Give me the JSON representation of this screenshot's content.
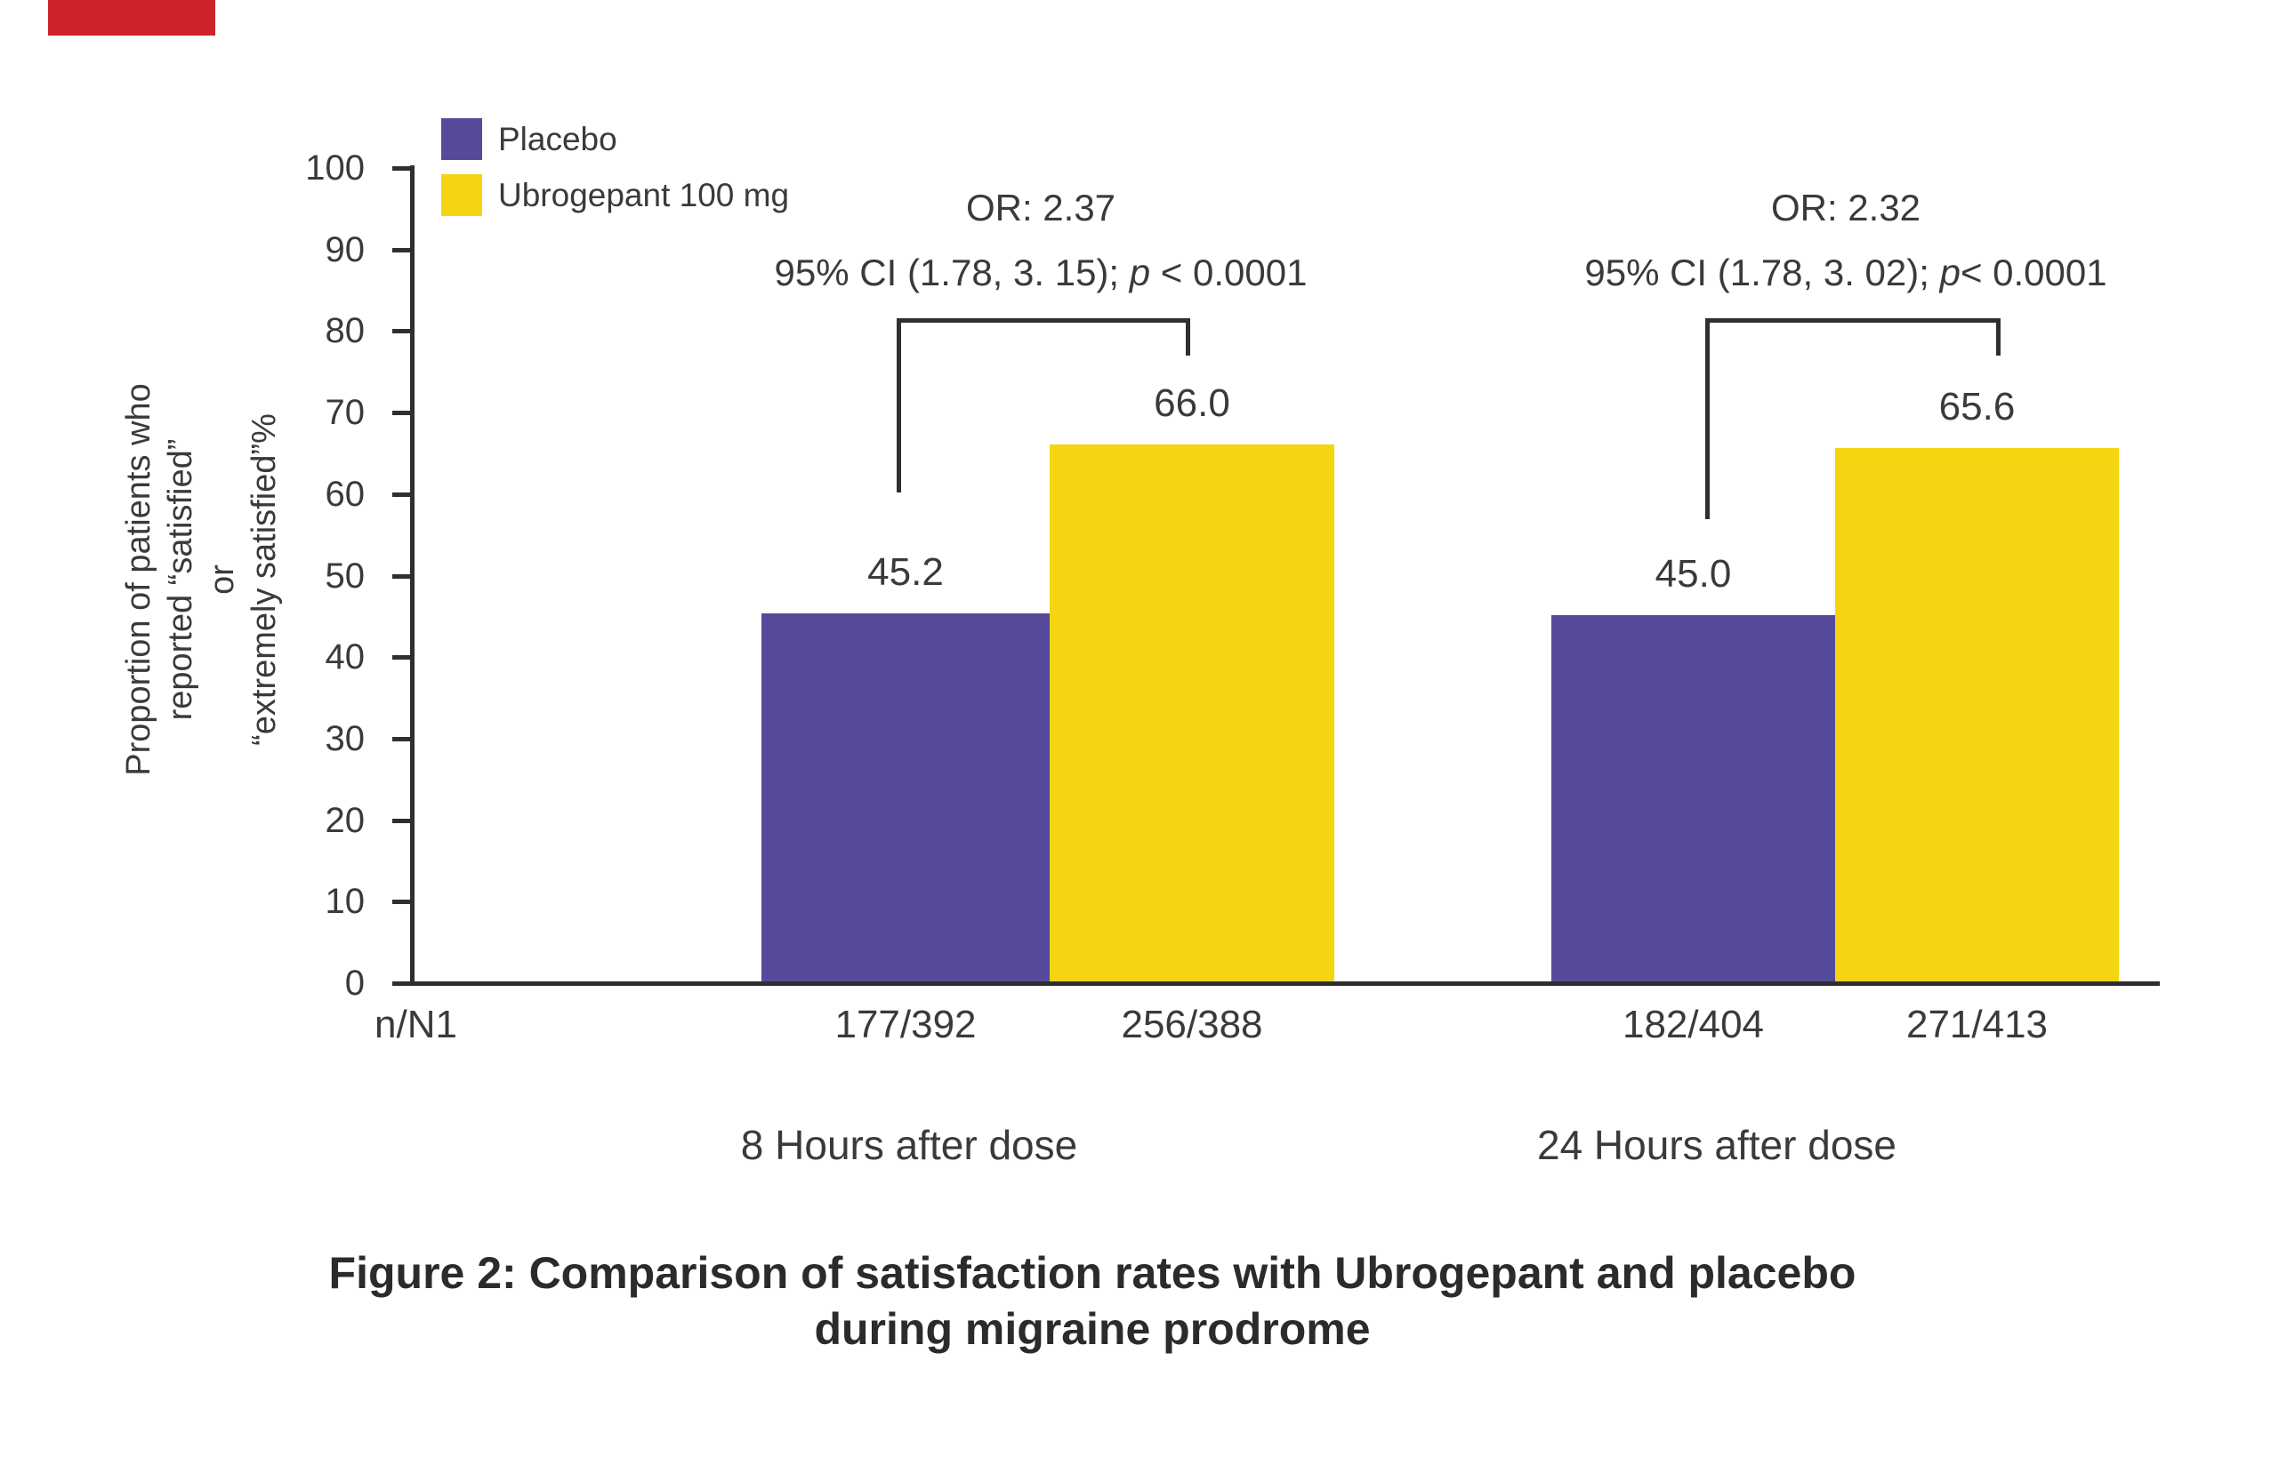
{
  "figure": {
    "decoration": {
      "red_bar_color": "#cc2229"
    },
    "legend": [
      {
        "label": "Placebo",
        "color": "#554a9a"
      },
      {
        "label": "Ubrogepant 100 mg",
        "color": "#f5d411"
      }
    ],
    "y_axis": {
      "label_lines": [
        "Proportion of patients who",
        "reported “satisfied”",
        "or",
        "“extremely satisfied”%"
      ]
    },
    "row_label": "n/N1",
    "groups": [
      {
        "label": "8 Hours after dose",
        "or_text": "OR: 2.37",
        "ci_prefix": "95% CI (1.78, 3. 15); ",
        "ci_p": "p",
        "ci_suffix": " < 0.0001",
        "bars": [
          {
            "series": "Placebo",
            "value_label": "45.2",
            "n_over_N": "177/392"
          },
          {
            "series": "Ubrogepant 100 mg",
            "value_label": "66.0",
            "n_over_N": "256/388"
          }
        ]
      },
      {
        "label": "24 Hours after dose",
        "or_text": "OR: 2.32",
        "ci_prefix": "95% CI (1.78, 3. 02); ",
        "ci_p": "p",
        "ci_suffix": "< 0.0001",
        "bars": [
          {
            "series": "Placebo",
            "value_label": "45.0",
            "n_over_N": "182/404"
          },
          {
            "series": "Ubrogepant 100 mg",
            "value_label": "65.6",
            "n_over_N": "271/413"
          }
        ]
      }
    ],
    "title_lines": [
      "Figure 2: Comparison of satisfaction rates with Ubrogepant and placebo",
      "during migraine prodrome"
    ]
  },
  "chart_data": {
    "type": "bar",
    "categories": [
      "8 Hours after dose",
      "24 Hours after dose"
    ],
    "series": [
      {
        "name": "Placebo",
        "color": "#554a9a",
        "values": [
          45.2,
          45.0
        ],
        "n_over_N": [
          "177/392",
          "182/404"
        ]
      },
      {
        "name": "Ubrogepant 100 mg",
        "color": "#f5d411",
        "values": [
          66.0,
          65.6
        ],
        "n_over_N": [
          "256/388",
          "271/413"
        ]
      }
    ],
    "annotations": [
      {
        "group": "8 Hours after dose",
        "odds_ratio": "OR: 2.37",
        "ci": "95% CI (1.78, 3. 15); p < 0.0001"
      },
      {
        "group": "24 Hours after dose",
        "odds_ratio": "OR: 2.32",
        "ci": "95% CI (1.78, 3. 02); p< 0.0001"
      }
    ],
    "title": "Figure 2: Comparison of satisfaction rates with Ubrogepant and placebo during migraine prodrome",
    "ylabel": "Proportion of patients who reported “satisfied” or “extremely satisfied”%",
    "x_row_label": "n/N1",
    "ylim": [
      0,
      100
    ],
    "yticks": [
      100,
      90,
      80,
      70,
      60,
      50,
      40,
      30,
      20,
      10,
      0
    ],
    "grid": false,
    "legend_position": "top-left"
  }
}
